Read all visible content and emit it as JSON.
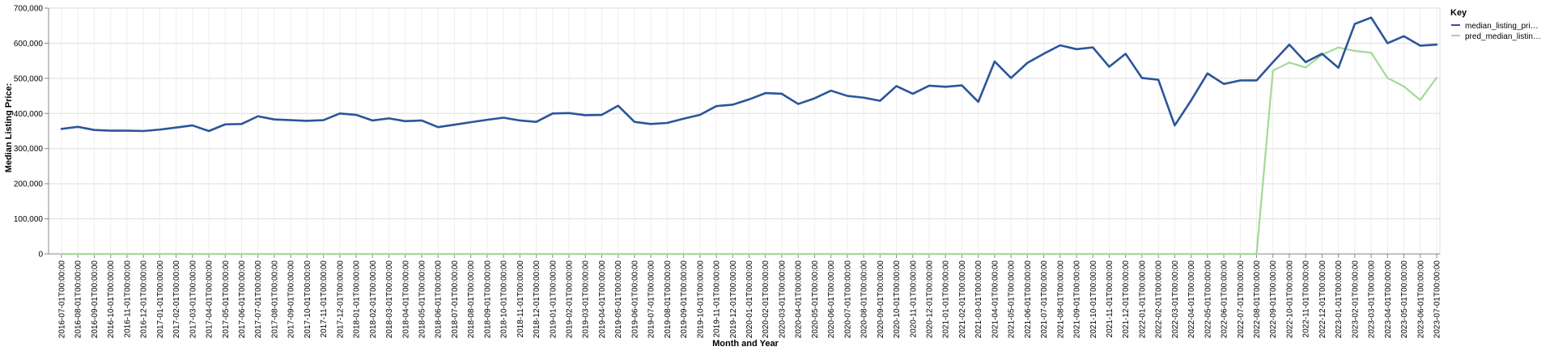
{
  "chart_data": {
    "type": "line",
    "title": "",
    "xlabel": "Month and Year",
    "ylabel": "Median Listing Price:",
    "ylim": [
      0,
      700000
    ],
    "yticks": [
      0,
      100000,
      200000,
      300000,
      400000,
      500000,
      600000,
      700000
    ],
    "ytick_labels": [
      "0",
      "100,000",
      "200,000",
      "300,000",
      "400,000",
      "500,000",
      "600,000",
      "700,000"
    ],
    "grid": true,
    "legend_position": "right",
    "legend": {
      "title": "Key",
      "labels": [
        "median_listing_pri…",
        "pred_median_listin…"
      ]
    },
    "x": [
      "2016-07-01T00:00:00",
      "2016-08-01T00:00:00",
      "2016-09-01T00:00:00",
      "2016-10-01T00:00:00",
      "2016-11-01T00:00:00",
      "2016-12-01T00:00:00",
      "2017-01-01T00:00:00",
      "2017-02-01T00:00:00",
      "2017-03-01T00:00:00",
      "2017-04-01T00:00:00",
      "2017-05-01T00:00:00",
      "2017-06-01T00:00:00",
      "2017-07-01T00:00:00",
      "2017-08-01T00:00:00",
      "2017-09-01T00:00:00",
      "2017-10-01T00:00:00",
      "2017-11-01T00:00:00",
      "2017-12-01T00:00:00",
      "2018-01-01T00:00:00",
      "2018-02-01T00:00:00",
      "2018-03-01T00:00:00",
      "2018-04-01T00:00:00",
      "2018-05-01T00:00:00",
      "2018-06-01T00:00:00",
      "2018-07-01T00:00:00",
      "2018-08-01T00:00:00",
      "2018-09-01T00:00:00",
      "2018-10-01T00:00:00",
      "2018-11-01T00:00:00",
      "2018-12-01T00:00:00",
      "2019-01-01T00:00:00",
      "2019-02-01T00:00:00",
      "2019-03-01T00:00:00",
      "2019-04-01T00:00:00",
      "2019-05-01T00:00:00",
      "2019-06-01T00:00:00",
      "2019-07-01T00:00:00",
      "2019-08-01T00:00:00",
      "2019-09-01T00:00:00",
      "2019-10-01T00:00:00",
      "2019-11-01T00:00:00",
      "2019-12-01T00:00:00",
      "2020-01-01T00:00:00",
      "2020-02-01T00:00:00",
      "2020-03-01T00:00:00",
      "2020-04-01T00:00:00",
      "2020-05-01T00:00:00",
      "2020-06-01T00:00:00",
      "2020-07-01T00:00:00",
      "2020-08-01T00:00:00",
      "2020-09-01T00:00:00",
      "2020-10-01T00:00:00",
      "2020-11-01T00:00:00",
      "2020-12-01T00:00:00",
      "2021-01-01T00:00:00",
      "2021-02-01T00:00:00",
      "2021-03-01T00:00:00",
      "2021-04-01T00:00:00",
      "2021-05-01T00:00:00",
      "2021-06-01T00:00:00",
      "2021-07-01T00:00:00",
      "2021-08-01T00:00:00",
      "2021-09-01T00:00:00",
      "2021-10-01T00:00:00",
      "2021-11-01T00:00:00",
      "2021-12-01T00:00:00",
      "2022-01-01T00:00:00",
      "2022-02-01T00:00:00",
      "2022-03-01T00:00:00",
      "2022-04-01T00:00:00",
      "2022-05-01T00:00:00",
      "2022-06-01T00:00:00",
      "2022-07-01T00:00:00",
      "2022-08-01T00:00:00",
      "2022-09-01T00:00:00",
      "2022-10-01T00:00:00",
      "2022-11-01T00:00:00",
      "2022-12-01T00:00:00",
      "2023-01-01T00:00:00",
      "2023-02-01T00:00:00",
      "2023-03-01T00:00:00",
      "2023-04-01T00:00:00",
      "2023-05-01T00:00:00",
      "2023-06-01T00:00:00",
      "2023-07-01T00:00:00"
    ],
    "series": [
      {
        "name": "median_listing_pri…",
        "color": "#2b559b",
        "values": [
          356000,
          362000,
          353000,
          351000,
          351000,
          350000,
          354000,
          360000,
          366000,
          350000,
          369000,
          370000,
          392000,
          383000,
          381000,
          379000,
          381000,
          400000,
          396000,
          380000,
          386000,
          378000,
          380000,
          361000,
          368000,
          375000,
          382000,
          388000,
          380000,
          376000,
          400000,
          401000,
          395000,
          396000,
          422000,
          376000,
          370000,
          373000,
          385000,
          396000,
          421000,
          425000,
          440000,
          458000,
          456000,
          427000,
          443000,
          465000,
          450000,
          445000,
          436000,
          478000,
          456000,
          479000,
          476000,
          480000,
          433000,
          548000,
          501000,
          544000,
          570000,
          594000,
          583000,
          588000,
          533000,
          570000,
          501000,
          496000,
          366000,
          437000,
          514000,
          484000,
          494000,
          494000,
          546000,
          596000,
          546000,
          570000,
          530000,
          655000,
          673000,
          600000,
          620000,
          593000,
          596000
        ]
      },
      {
        "name": "pred_median_listin…",
        "color": "#a2da96",
        "values": [
          0,
          0,
          0,
          0,
          0,
          0,
          0,
          0,
          0,
          0,
          0,
          0,
          0,
          0,
          0,
          0,
          0,
          0,
          0,
          0,
          0,
          0,
          0,
          0,
          0,
          0,
          0,
          0,
          0,
          0,
          0,
          0,
          0,
          0,
          0,
          0,
          0,
          0,
          0,
          0,
          0,
          0,
          0,
          0,
          0,
          0,
          0,
          0,
          0,
          0,
          0,
          0,
          0,
          0,
          0,
          0,
          0,
          0,
          0,
          0,
          0,
          0,
          0,
          0,
          0,
          0,
          0,
          0,
          0,
          0,
          0,
          0,
          0,
          0,
          522000,
          545000,
          531000,
          567000,
          588000,
          578000,
          573000,
          501000,
          477000,
          438000,
          502000
        ]
      }
    ]
  }
}
